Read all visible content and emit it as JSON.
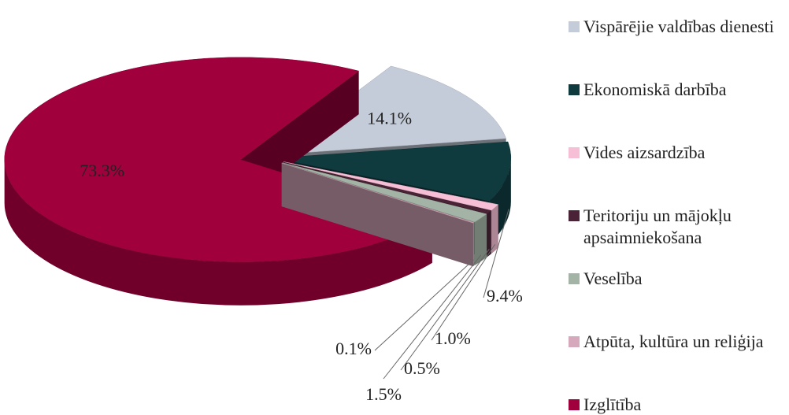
{
  "chart_data": {
    "type": "pie3d",
    "categories": [
      "Vispārējie valdības dienesti",
      "Ekonomiskā darbība",
      "Vides aizsardzība",
      "Teritoriju un mājokļu apsaimniekošana",
      "Veselība",
      "Atpūta, kultūra un reliģija",
      "Izglītība"
    ],
    "values": [
      14.1,
      9.4,
      1.0,
      0.5,
      1.5,
      0.1,
      73.3
    ],
    "value_labels": [
      "14.1%",
      "9.4%",
      "1.0%",
      "0.5%",
      "1.5%",
      "0.1%",
      "73.3%"
    ],
    "colors": [
      "#c5ccd9",
      "#0f3b3f",
      "#f7bfd6",
      "#4a2436",
      "#a3b4a6",
      "#d6a8bb",
      "#a0003c"
    ],
    "legend": "right"
  }
}
